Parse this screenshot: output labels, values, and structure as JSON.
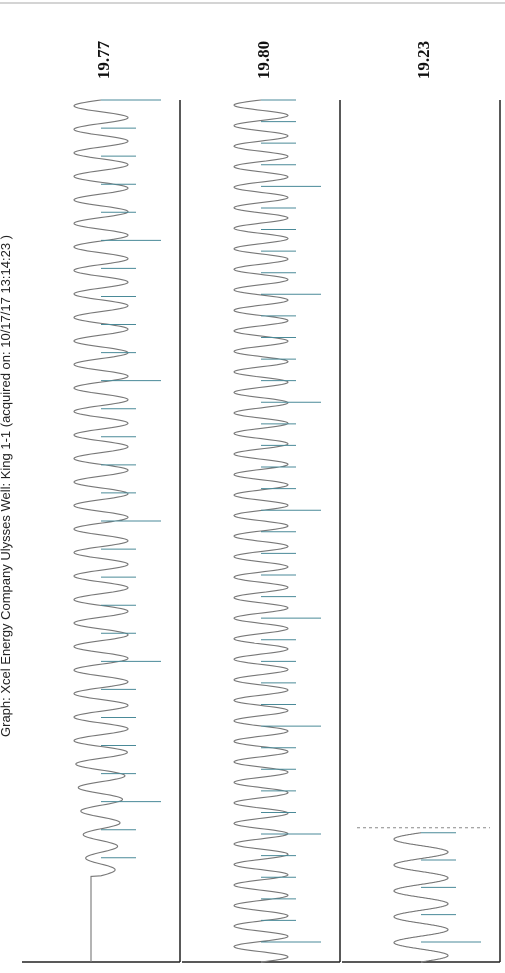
{
  "page": {
    "header": "Graph: Xcel Energy Company Ulysses    Well: King 1-1 (acquired on: 10/17/17 13:14:23 )"
  },
  "chart_data": {
    "type": "line",
    "title": "",
    "orientation": "rotated-90-clockwise",
    "grid": false,
    "panels": [
      {
        "label": "19.77",
        "cycles": 33,
        "flat_fraction": 0.1,
        "amplitude_profile": "ramp"
      },
      {
        "label": "19.80",
        "cycles": 42,
        "flat_fraction": 0.0,
        "amplitude_profile": "steady"
      },
      {
        "label": "19.23",
        "cycles": 5,
        "flat_fraction": 0.0,
        "amplitude_profile": "partial",
        "coverage": 0.15
      }
    ],
    "colors": {
      "trace": "#777777",
      "tick": "#4a8a98",
      "axis": "#222222"
    }
  }
}
